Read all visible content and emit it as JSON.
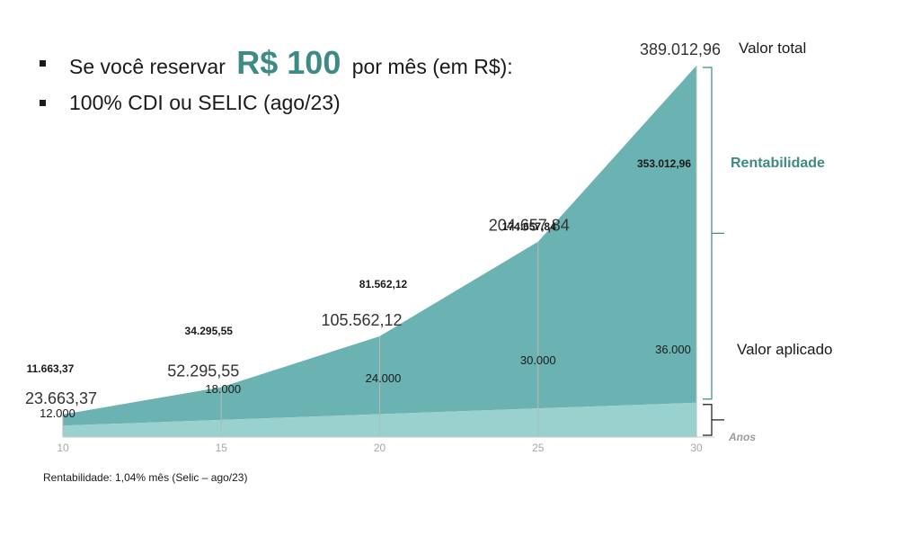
{
  "heading": {
    "line1_prefix": "Se você reservar",
    "line1_amount": "R$ 100",
    "line1_suffix": "por mês (em R$):",
    "line2": "100% CDI ou SELIC (ago/23)"
  },
  "footnote": "Rentabilidade: 1,04% mês (Selic – ago/23)",
  "chart_data": {
    "type": "area",
    "x": [
      10,
      15,
      20,
      25,
      30
    ],
    "x_tick_labels": [
      "10",
      "15",
      "20",
      "25",
      "30"
    ],
    "xlabel": "Anos",
    "ylim": [
      0,
      389012.96
    ],
    "series": [
      {
        "name": "Valor aplicado",
        "values": [
          12000,
          18000,
          24000,
          30000,
          36000
        ],
        "labels": [
          "12.000",
          "18.000",
          "24.000",
          "30.000",
          "36.000"
        ],
        "color": "#99d1cf"
      },
      {
        "name": "Rentabilidade",
        "values": [
          11663.37,
          34295.55,
          81562.12,
          174657.84,
          353012.96
        ],
        "labels": [
          "11.663,37",
          "34.295,55",
          "81.562,12",
          "174.657,84",
          "353.012,96"
        ],
        "color": "#6ab3b2"
      }
    ],
    "totals": [
      23663.37,
      52295.55,
      105562.12,
      204657.84,
      389012.96
    ],
    "total_labels": [
      "23.663,37",
      "52.295,55",
      "105.562,12",
      "204.657,84",
      "389.012,96"
    ],
    "annotations": {
      "total": "Valor total",
      "rentabilidade": "Rentabilidade",
      "aplicado": "Valor aplicado"
    },
    "colors": {
      "aplicado": "#99d1cf",
      "rentabilidade": "#6ab3b2",
      "accent_text": "#3e8a84",
      "gridline": "#b8b8b8"
    }
  }
}
